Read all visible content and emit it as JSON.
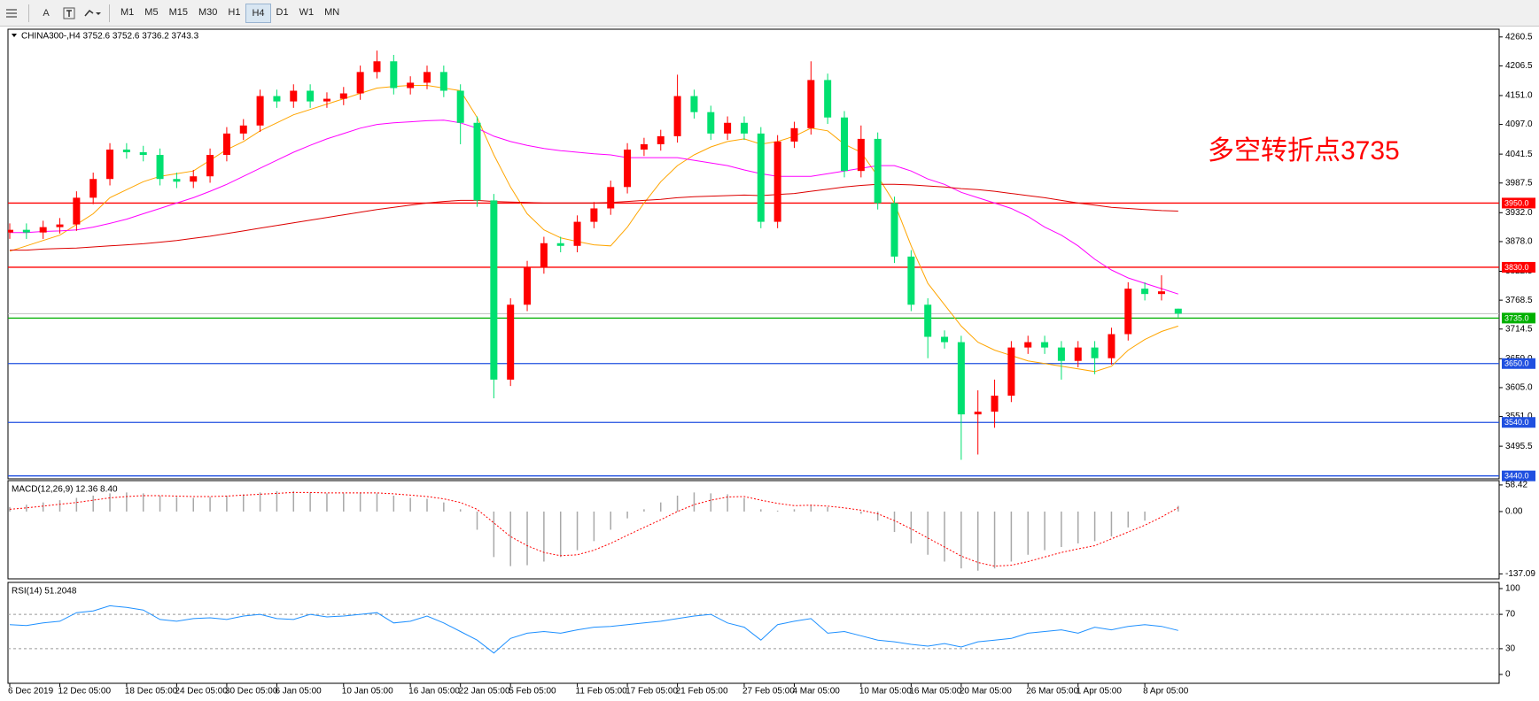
{
  "toolbar": {
    "text_tool": "A",
    "buttons": [
      "M1",
      "M5",
      "M15",
      "M30",
      "H1",
      "H4",
      "D1",
      "W1",
      "MN"
    ],
    "active": 5
  },
  "chart_data": [
    {
      "type": "candlestick",
      "title": "CHINA300-,H4 3752.6 3752.6 3736.2 3743.3",
      "categories": [
        "6 Dec 2019",
        null,
        null,
        "12 Dec 05:00",
        null,
        null,
        null,
        "18 Dec 05:00",
        null,
        null,
        "24 Dec 05:00",
        null,
        null,
        "30 Dec 05:00",
        null,
        null,
        "6 Jan 05:00",
        null,
        null,
        null,
        "10 Jan 05:00",
        null,
        null,
        null,
        "16 Jan 05:00",
        null,
        null,
        "22 Jan 05:00",
        null,
        null,
        "5 Feb 05:00",
        null,
        null,
        null,
        "11 Feb 05:00",
        null,
        null,
        "17 Feb 05:00",
        null,
        null,
        "21 Feb 05:00",
        null,
        null,
        null,
        "27 Feb 05:00",
        null,
        null,
        "4 Mar 05:00",
        null,
        null,
        null,
        "10 Mar 05:00",
        null,
        null,
        "16 Mar 05:00",
        null,
        null,
        "20 Mar 05:00",
        null,
        null,
        null,
        "26 Mar 05:00",
        null,
        null,
        "1 Apr 05:00",
        null,
        null,
        null,
        "8 Apr 05:00",
        null,
        null
      ],
      "candles": [
        [
          3895,
          3912,
          3883,
          3900
        ],
        [
          3900,
          3912,
          3883,
          3895
        ],
        [
          3895,
          3917,
          3883,
          3905
        ],
        [
          3905,
          3922,
          3893,
          3910
        ],
        [
          3910,
          3972,
          3898,
          3960
        ],
        [
          3960,
          4007,
          3948,
          3995
        ],
        [
          3995,
          4062,
          3983,
          4050
        ],
        [
          4050,
          4062,
          4033,
          4045
        ],
        [
          4045,
          4057,
          4028,
          4040
        ],
        [
          4040,
          4052,
          3983,
          3995
        ],
        [
          3995,
          4007,
          3978,
          3990
        ],
        [
          3990,
          4012,
          3978,
          4000
        ],
        [
          4000,
          4052,
          3988,
          4040
        ],
        [
          4040,
          4092,
          4028,
          4080
        ],
        [
          4080,
          4107,
          4068,
          4095
        ],
        [
          4095,
          4162,
          4083,
          4150
        ],
        [
          4150,
          4162,
          4128,
          4140
        ],
        [
          4140,
          4172,
          4128,
          4160
        ],
        [
          4160,
          4172,
          4128,
          4140
        ],
        [
          4140,
          4157,
          4128,
          4145
        ],
        [
          4145,
          4167,
          4133,
          4155
        ],
        [
          4155,
          4207,
          4143,
          4195
        ],
        [
          4195,
          4235,
          4183,
          4215
        ],
        [
          4215,
          4227,
          4153,
          4165
        ],
        [
          4165,
          4187,
          4153,
          4175
        ],
        [
          4175,
          4207,
          4163,
          4195
        ],
        [
          4195,
          4207,
          4148,
          4160
        ],
        [
          4160,
          4172,
          4060,
          4100
        ],
        [
          4100,
          4112,
          3943,
          3955
        ],
        [
          3955,
          3967,
          3585,
          3620
        ],
        [
          3620,
          3772,
          3608,
          3760
        ],
        [
          3760,
          3842,
          3748,
          3830
        ],
        [
          3830,
          3887,
          3818,
          3875
        ],
        [
          3875,
          3887,
          3858,
          3870
        ],
        [
          3870,
          3927,
          3858,
          3915
        ],
        [
          3915,
          3952,
          3903,
          3940
        ],
        [
          3940,
          3992,
          3928,
          3980
        ],
        [
          3980,
          4062,
          3968,
          4050
        ],
        [
          4050,
          4072,
          4038,
          4060
        ],
        [
          4060,
          4087,
          4048,
          4075
        ],
        [
          4075,
          4190,
          4063,
          4150
        ],
        [
          4150,
          4162,
          4108,
          4120
        ],
        [
          4120,
          4132,
          4068,
          4080
        ],
        [
          4080,
          4112,
          4068,
          4100
        ],
        [
          4100,
          4112,
          4068,
          4080
        ],
        [
          4080,
          4092,
          3903,
          3915
        ],
        [
          3915,
          4077,
          3903,
          4065
        ],
        [
          4065,
          4102,
          4053,
          4090
        ],
        [
          4090,
          4215,
          4078,
          4180
        ],
        [
          4180,
          4192,
          4098,
          4110
        ],
        [
          4110,
          4122,
          3998,
          4010
        ],
        [
          4010,
          4095,
          3998,
          4070
        ],
        [
          4070,
          4082,
          3938,
          3950
        ],
        [
          3950,
          3962,
          3838,
          3850
        ],
        [
          3850,
          3862,
          3748,
          3760
        ],
        [
          3760,
          3772,
          3660,
          3700
        ],
        [
          3700,
          3712,
          3678,
          3690
        ],
        [
          3690,
          3702,
          3470,
          3555
        ],
        [
          3555,
          3600,
          3480,
          3560
        ],
        [
          3560,
          3620,
          3530,
          3590
        ],
        [
          3590,
          3692,
          3578,
          3680
        ],
        [
          3680,
          3702,
          3668,
          3690
        ],
        [
          3690,
          3702,
          3668,
          3680
        ],
        [
          3680,
          3692,
          3620,
          3655
        ],
        [
          3655,
          3692,
          3643,
          3680
        ],
        [
          3680,
          3692,
          3630,
          3660
        ],
        [
          3660,
          3717,
          3648,
          3705
        ],
        [
          3705,
          3802,
          3693,
          3790
        ],
        [
          3790,
          3802,
          3768,
          3780
        ],
        [
          3780,
          3815,
          3768,
          3785
        ],
        [
          3752.6,
          3752.6,
          3736.2,
          3743.3
        ]
      ],
      "up_color": "#ff0000",
      "down_color": "#00e070",
      "current_color": "#c0c0c0",
      "series": [
        {
          "color": "#ffa500",
          "values": [
            3860,
            3870,
            3880,
            3890,
            3910,
            3930,
            3960,
            3975,
            3990,
            4000,
            4005,
            4010,
            4030,
            4050,
            4065,
            4085,
            4100,
            4115,
            4125,
            4135,
            4145,
            4155,
            4165,
            4168,
            4170,
            4170,
            4165,
            4160,
            4110,
            4040,
            3980,
            3930,
            3900,
            3885,
            3878,
            3872,
            3870,
            3905,
            3950,
            3990,
            4020,
            4040,
            4055,
            4065,
            4070,
            4060,
            4065,
            4075,
            4090,
            4085,
            4060,
            4045,
            4000,
            3950,
            3870,
            3800,
            3760,
            3720,
            3690,
            3675,
            3665,
            3655,
            3650,
            3645,
            3640,
            3635,
            3645,
            3675,
            3695,
            3710,
            3720
          ]
        },
        {
          "color": "#ff00ff",
          "values": [
            3895,
            3895,
            3897,
            3898,
            3900,
            3905,
            3912,
            3920,
            3930,
            3940,
            3950,
            3960,
            3972,
            3985,
            4000,
            4015,
            4030,
            4045,
            4058,
            4070,
            4080,
            4090,
            4097,
            4100,
            4102,
            4104,
            4105,
            4100,
            4090,
            4075,
            4065,
            4058,
            4052,
            4048,
            4045,
            4042,
            4040,
            4035,
            4035,
            4035,
            4035,
            4030,
            4025,
            4020,
            4012,
            4005,
            4000,
            4000,
            4000,
            4005,
            4010,
            4015,
            4020,
            4020,
            4010,
            3995,
            3985,
            3970,
            3960,
            3950,
            3940,
            3925,
            3905,
            3890,
            3870,
            3845,
            3825,
            3810,
            3800,
            3790,
            3780
          ]
        },
        {
          "color": "#dd0000",
          "values": [
            3862,
            3862,
            3864,
            3865,
            3866,
            3868,
            3870,
            3872,
            3874,
            3877,
            3880,
            3884,
            3888,
            3893,
            3898,
            3903,
            3908,
            3913,
            3918,
            3923,
            3928,
            3933,
            3938,
            3942,
            3946,
            3950,
            3953,
            3955,
            3955,
            3953,
            3952,
            3951,
            3950,
            3950,
            3950,
            3950,
            3951,
            3953,
            3955,
            3957,
            3960,
            3962,
            3963,
            3964,
            3965,
            3964,
            3966,
            3968,
            3972,
            3976,
            3980,
            3983,
            3985,
            3985,
            3984,
            3982,
            3980,
            3977,
            3975,
            3972,
            3968,
            3964,
            3960,
            3955,
            3950,
            3946,
            3942,
            3940,
            3938,
            3936,
            3935
          ]
        }
      ],
      "levels": [
        {
          "value": 3950,
          "label": "3950.0",
          "color": "#ff0000"
        },
        {
          "value": 3830,
          "label": "3830.0",
          "color": "#ff0000"
        },
        {
          "value": 3735,
          "label": "3735.0",
          "color": "#00b000"
        },
        {
          "value": 3650,
          "label": "3650.0",
          "color": "#2050e0"
        },
        {
          "value": 3540,
          "label": "3540.0",
          "color": "#2050e0"
        },
        {
          "value": 3440,
          "label": "3440.0",
          "color": "#2050e0"
        }
      ],
      "annotation": "多空转折点3735",
      "annotation_color": "#ff0000",
      "ylim": [
        3434.5,
        4275
      ],
      "yticks": [
        4260.5,
        4206.5,
        {
          "value": 4151,
          "label": "4151.0"
        },
        {
          "value": 4097,
          "label": "4097.0"
        },
        4041.5,
        3987.5,
        {
          "value": 3932,
          "label": "3932.0"
        },
        {
          "value": 3878,
          "label": "3878.0"
        },
        3822.5,
        3768.5,
        3714.5,
        {
          "value": 3659,
          "label": "3659.0"
        },
        {
          "value": 3605,
          "label": "3605.0"
        },
        {
          "value": 3551,
          "label": "3551.0"
        },
        3495.5
      ]
    },
    {
      "type": "macd",
      "title": "MACD(12,26,9) 12.36 8.40",
      "histogram": [
        10,
        15,
        20,
        25,
        30,
        35,
        40,
        42,
        40,
        35,
        32,
        30,
        32,
        35,
        38,
        42,
        45,
        45,
        42,
        40,
        40,
        42,
        40,
        35,
        30,
        28,
        20,
        5,
        -40,
        -100,
        -120,
        -118,
        -110,
        -100,
        -85,
        -65,
        -40,
        -15,
        5,
        20,
        35,
        42,
        40,
        38,
        30,
        5,
        2,
        5,
        15,
        10,
        0,
        -5,
        -20,
        -45,
        -70,
        -95,
        -110,
        -125,
        -130,
        -125,
        -110,
        -95,
        -85,
        -78,
        -70,
        -65,
        -55,
        -35,
        -20,
        0,
        12.36
      ],
      "signal": [
        5,
        8,
        12,
        16,
        20,
        25,
        30,
        33,
        35,
        35,
        34,
        33,
        33,
        34,
        36,
        38,
        40,
        42,
        42,
        41,
        41,
        41,
        41,
        39,
        36,
        33,
        28,
        20,
        5,
        -25,
        -55,
        -75,
        -90,
        -97,
        -95,
        -85,
        -70,
        -52,
        -35,
        -18,
        0,
        15,
        25,
        32,
        33,
        25,
        18,
        13,
        14,
        12,
        8,
        3,
        -5,
        -20,
        -38,
        -58,
        -78,
        -98,
        -112,
        -120,
        -118,
        -110,
        -100,
        -90,
        -82,
        -75,
        -60,
        -45,
        -30,
        -12,
        8.4
      ],
      "histogram_color": "#a8a8a8",
      "signal_color": "#ff0000",
      "ylim": [
        -148,
        68
      ],
      "yticks": [
        58.42,
        {
          "value": 0,
          "label": "0.00"
        },
        -137.09
      ]
    },
    {
      "type": "rsi",
      "title": "RSI(14) 51.2048",
      "values": [
        58,
        57,
        60,
        62,
        72,
        74,
        80,
        78,
        75,
        64,
        62,
        65,
        66,
        64,
        68,
        70,
        65,
        64,
        70,
        67,
        68,
        70,
        72,
        60,
        62,
        68,
        60,
        50,
        40,
        25,
        42,
        48,
        50,
        48,
        52,
        55,
        56,
        58,
        60,
        62,
        65,
        68,
        70,
        60,
        55,
        40,
        58,
        62,
        65,
        48,
        50,
        45,
        40,
        38,
        35,
        33,
        36,
        32,
        38,
        40,
        42,
        48,
        50,
        52,
        48,
        55,
        52,
        56,
        58,
        56,
        51.2048
      ],
      "color": "#1e90ff",
      "ylim": [
        -10.3,
        107.2
      ],
      "yticks": [
        100,
        70,
        30,
        0
      ],
      "levels_dashed": [
        1,
        2
      ]
    }
  ]
}
